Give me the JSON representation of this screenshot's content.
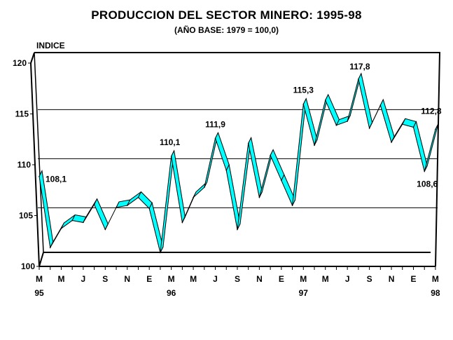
{
  "chart_data": {
    "type": "line",
    "style": "3d-ribbon",
    "title": "PRODUCCION DEL SECTOR  MINERO: 1995-98",
    "subtitle": "(AÑO BASE: 1979 = 100,0)",
    "ylabel": "INDICE",
    "xlabel": "",
    "ylim": [
      100,
      120
    ],
    "yticks": [
      "100",
      "105",
      "110",
      "115",
      "120"
    ],
    "gridlines_at": [
      105,
      110,
      115
    ],
    "x_tick_labels": [
      {
        "index": 0,
        "month": "M",
        "year": "95"
      },
      {
        "index": 2,
        "month": "M",
        "year": ""
      },
      {
        "index": 4,
        "month": "J",
        "year": ""
      },
      {
        "index": 6,
        "month": "S",
        "year": ""
      },
      {
        "index": 8,
        "month": "N",
        "year": ""
      },
      {
        "index": 10,
        "month": "E",
        "year": ""
      },
      {
        "index": 12,
        "month": "M",
        "year": "96"
      },
      {
        "index": 14,
        "month": "M",
        "year": ""
      },
      {
        "index": 16,
        "month": "J",
        "year": ""
      },
      {
        "index": 18,
        "month": "S",
        "year": ""
      },
      {
        "index": 20,
        "month": "N",
        "year": ""
      },
      {
        "index": 22,
        "month": "E",
        "year": ""
      },
      {
        "index": 24,
        "month": "M",
        "year": "97"
      },
      {
        "index": 26,
        "month": "M",
        "year": ""
      },
      {
        "index": 28,
        "month": "J",
        "year": ""
      },
      {
        "index": 30,
        "month": "S",
        "year": ""
      },
      {
        "index": 32,
        "month": "N",
        "year": ""
      },
      {
        "index": 34,
        "month": "E",
        "year": ""
      },
      {
        "index": 36,
        "month": "M",
        "year": "98"
      }
    ],
    "values": [
      108.1,
      101.0,
      102.9,
      103.7,
      103.5,
      105.3,
      102.8,
      105.0,
      105.2,
      106.0,
      104.9,
      100.5,
      110.1,
      103.5,
      106.0,
      107.0,
      111.9,
      108.7,
      102.8,
      111.4,
      106.0,
      110.2,
      107.7,
      105.2,
      115.3,
      111.2,
      115.7,
      113.2,
      113.6,
      117.8,
      112.9,
      115.2,
      111.5,
      113.3,
      113.0,
      108.6,
      112.8
    ],
    "data_labels": [
      {
        "index": 0,
        "text": "108,1"
      },
      {
        "index": 12,
        "text": "110,1"
      },
      {
        "index": 16,
        "text": "111,9"
      },
      {
        "index": 24,
        "text": "115,3"
      },
      {
        "index": 29,
        "text": "117,8"
      },
      {
        "index": 35,
        "text": "108,6"
      },
      {
        "index": 36,
        "text": "112,8"
      }
    ],
    "colors": {
      "ribbon": "#00ffff",
      "line": "#000000"
    },
    "grid": true,
    "legend": "none"
  }
}
